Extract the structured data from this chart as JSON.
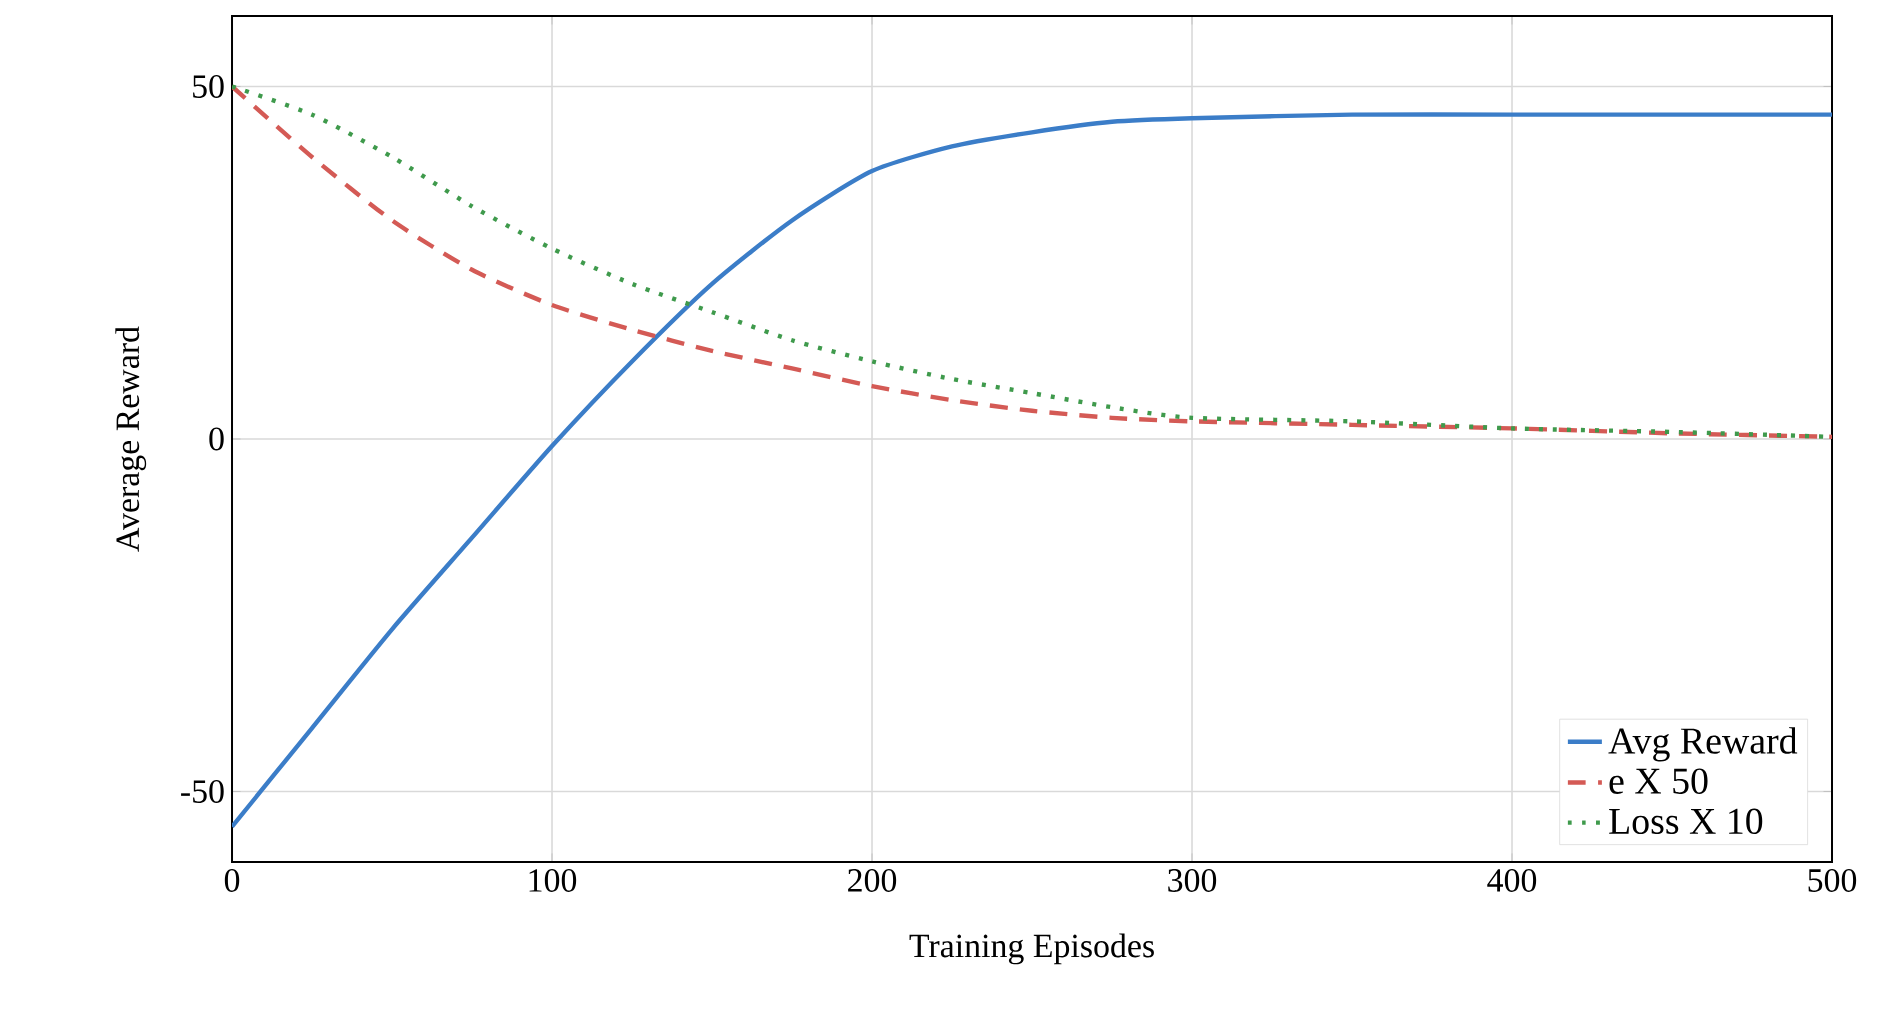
{
  "chart_data": {
    "type": "line",
    "xlabel": "Training Episodes",
    "ylabel": "Average Reward",
    "x": [
      0,
      25,
      50,
      75,
      100,
      125,
      150,
      175,
      200,
      225,
      250,
      275,
      300,
      350,
      400,
      450,
      500
    ],
    "series": [
      {
        "name": "Avg Reward",
        "color": "#3b7dc8",
        "line_style": "solid",
        "values": [
          -55,
          -41,
          -27,
          -14,
          -1,
          11,
          22,
          31,
          38,
          41.5,
          43.5,
          45,
          45.5,
          46,
          46,
          46,
          46
        ]
      },
      {
        "name": "e X 50",
        "color": "#d45a55",
        "line_style": "dashed",
        "values": [
          50,
          40,
          31,
          24,
          19,
          15.5,
          12.5,
          10,
          7.5,
          5.5,
          4,
          3,
          2.5,
          2,
          1.5,
          0.8,
          0.3
        ]
      },
      {
        "name": "Loss X 10",
        "color": "#3f9a4c",
        "line_style": "dotted",
        "values": [
          50,
          46,
          40,
          33,
          27,
          22,
          18,
          14,
          11,
          8.5,
          6.5,
          4.5,
          3,
          2.5,
          1.5,
          1,
          0.3
        ]
      }
    ],
    "xlim": [
      0,
      500
    ],
    "ylim": [
      -60,
      60
    ],
    "xticks": [
      0,
      100,
      200,
      300,
      400,
      500
    ],
    "yticks": [
      -50,
      0,
      50
    ],
    "grid": true,
    "legend": "bottom right",
    "marker": "none"
  }
}
